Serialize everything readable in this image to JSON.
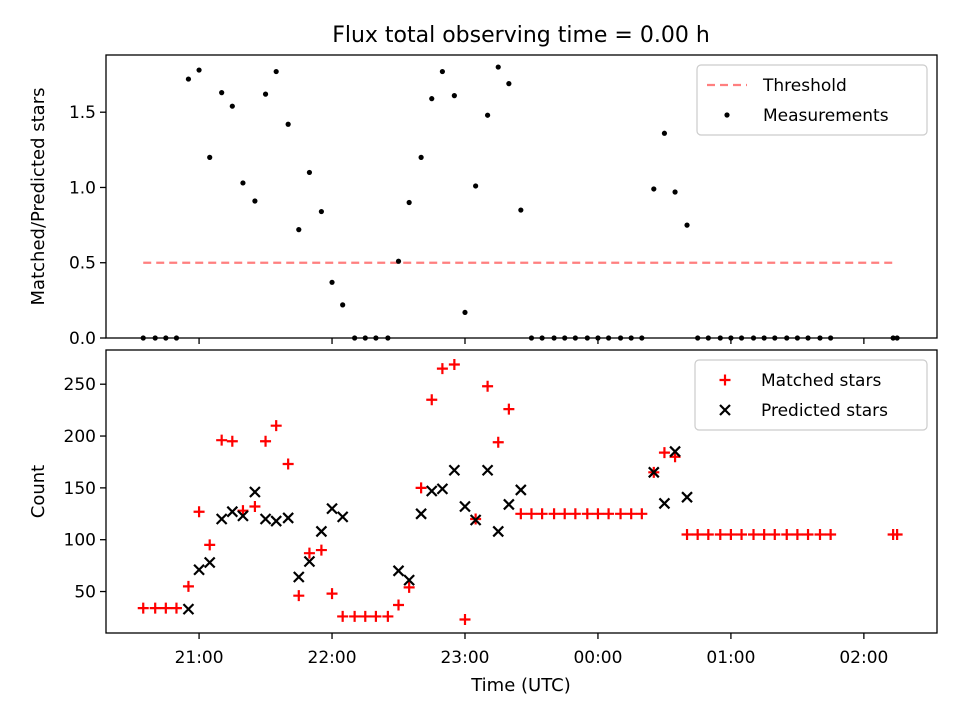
{
  "figure": {
    "title": "Flux total observing time = 0.00 h",
    "xlabel": "Time (UTC)",
    "xticks": [
      {
        "t": 21,
        "label": "21:00"
      },
      {
        "t": 22,
        "label": "22:00"
      },
      {
        "t": 23,
        "label": "23:00"
      },
      {
        "t": 24,
        "label": "00:00"
      },
      {
        "t": 25,
        "label": "01:00"
      },
      {
        "t": 26,
        "label": "02:00"
      }
    ],
    "xlim": [
      20.3,
      26.55
    ]
  },
  "chart_data": [
    {
      "type": "scatter",
      "ylabel": "Matched/Predicted stars",
      "ylim": [
        0,
        1.88
      ],
      "yticks": [
        {
          "v": 0.0,
          "label": "0.0"
        },
        {
          "v": 0.5,
          "label": "0.5"
        },
        {
          "v": 1.0,
          "label": "1.0"
        },
        {
          "v": 1.5,
          "label": "1.5"
        }
      ],
      "legend_position": "upper right",
      "threshold": {
        "name": "Threshold",
        "value": 0.5,
        "x_range": [
          20.58,
          26.25
        ],
        "color": "#ff7f7f"
      },
      "series": [
        {
          "name": "Measurements",
          "color": "#000000",
          "marker": "dot",
          "points": [
            [
              20.58,
              0.0
            ],
            [
              20.67,
              0.0
            ],
            [
              20.75,
              0.0
            ],
            [
              20.83,
              0.0
            ],
            [
              20.92,
              1.72
            ],
            [
              21.0,
              1.78
            ],
            [
              21.08,
              1.2
            ],
            [
              21.17,
              1.63
            ],
            [
              21.25,
              1.54
            ],
            [
              21.33,
              1.03
            ],
            [
              21.42,
              0.91
            ],
            [
              21.5,
              1.62
            ],
            [
              21.58,
              1.77
            ],
            [
              21.67,
              1.42
            ],
            [
              21.75,
              0.72
            ],
            [
              21.83,
              1.1
            ],
            [
              21.92,
              0.84
            ],
            [
              22.0,
              0.37
            ],
            [
              22.08,
              0.22
            ],
            [
              22.17,
              0.0
            ],
            [
              22.25,
              0.0
            ],
            [
              22.33,
              0.0
            ],
            [
              22.42,
              0.0
            ],
            [
              22.5,
              0.51
            ],
            [
              22.58,
              0.9
            ],
            [
              22.67,
              1.2
            ],
            [
              22.75,
              1.59
            ],
            [
              22.83,
              1.77
            ],
            [
              22.92,
              1.61
            ],
            [
              23.0,
              0.17
            ],
            [
              23.08,
              1.01
            ],
            [
              23.17,
              1.48
            ],
            [
              23.25,
              1.8
            ],
            [
              23.33,
              1.69
            ],
            [
              23.42,
              0.85
            ],
            [
              23.5,
              0.0
            ],
            [
              23.58,
              0.0
            ],
            [
              23.67,
              0.0
            ],
            [
              23.75,
              0.0
            ],
            [
              23.83,
              0.0
            ],
            [
              23.92,
              0.0
            ],
            [
              24.0,
              0.0
            ],
            [
              24.08,
              0.0
            ],
            [
              24.17,
              0.0
            ],
            [
              24.25,
              0.0
            ],
            [
              24.33,
              0.0
            ],
            [
              24.42,
              0.99
            ],
            [
              24.5,
              1.36
            ],
            [
              24.58,
              0.97
            ],
            [
              24.67,
              0.75
            ],
            [
              24.75,
              0.0
            ],
            [
              24.83,
              0.0
            ],
            [
              24.92,
              0.0
            ],
            [
              25.0,
              0.0
            ],
            [
              25.08,
              0.0
            ],
            [
              25.17,
              0.0
            ],
            [
              25.25,
              0.0
            ],
            [
              25.33,
              0.0
            ],
            [
              25.42,
              0.0
            ],
            [
              25.5,
              0.0
            ],
            [
              25.58,
              0.0
            ],
            [
              25.67,
              0.0
            ],
            [
              25.75,
              0.0
            ],
            [
              26.22,
              0.0
            ],
            [
              26.25,
              0.0
            ]
          ]
        }
      ]
    },
    {
      "type": "scatter",
      "ylabel": "Count",
      "ylim": [
        10,
        283
      ],
      "yticks": [
        {
          "v": 50,
          "label": "50"
        },
        {
          "v": 100,
          "label": "100"
        },
        {
          "v": 150,
          "label": "150"
        },
        {
          "v": 200,
          "label": "200"
        },
        {
          "v": 250,
          "label": "250"
        }
      ],
      "legend_position": "upper right",
      "series": [
        {
          "name": "Matched stars",
          "color": "#ff0000",
          "marker": "plus",
          "points": [
            [
              20.58,
              34
            ],
            [
              20.67,
              34
            ],
            [
              20.75,
              34
            ],
            [
              20.83,
              34
            ],
            [
              20.92,
              55
            ],
            [
              21.0,
              127
            ],
            [
              21.08,
              95
            ],
            [
              21.17,
              196
            ],
            [
              21.25,
              195
            ],
            [
              21.33,
              128
            ],
            [
              21.42,
              132
            ],
            [
              21.5,
              195
            ],
            [
              21.58,
              210
            ],
            [
              21.67,
              173
            ],
            [
              21.75,
              46
            ],
            [
              21.83,
              87
            ],
            [
              21.92,
              90
            ],
            [
              22.0,
              48
            ],
            [
              22.08,
              26
            ],
            [
              22.17,
              26
            ],
            [
              22.25,
              26
            ],
            [
              22.33,
              26
            ],
            [
              22.42,
              26
            ],
            [
              22.5,
              37
            ],
            [
              22.58,
              54
            ],
            [
              22.67,
              150
            ],
            [
              22.75,
              235
            ],
            [
              22.83,
              265
            ],
            [
              22.92,
              269
            ],
            [
              23.0,
              23
            ],
            [
              23.08,
              120
            ],
            [
              23.17,
              248
            ],
            [
              23.25,
              194
            ],
            [
              23.33,
              226
            ],
            [
              23.42,
              125
            ],
            [
              23.5,
              125
            ],
            [
              23.58,
              125
            ],
            [
              23.67,
              125
            ],
            [
              23.75,
              125
            ],
            [
              23.83,
              125
            ],
            [
              23.92,
              125
            ],
            [
              24.0,
              125
            ],
            [
              24.08,
              125
            ],
            [
              24.17,
              125
            ],
            [
              24.25,
              125
            ],
            [
              24.33,
              125
            ],
            [
              24.42,
              165
            ],
            [
              24.5,
              184
            ],
            [
              24.58,
              180
            ],
            [
              24.67,
              105
            ],
            [
              24.75,
              105
            ],
            [
              24.83,
              105
            ],
            [
              24.92,
              105
            ],
            [
              25.0,
              105
            ],
            [
              25.08,
              105
            ],
            [
              25.17,
              105
            ],
            [
              25.25,
              105
            ],
            [
              25.33,
              105
            ],
            [
              25.42,
              105
            ],
            [
              25.5,
              105
            ],
            [
              25.58,
              105
            ],
            [
              25.67,
              105
            ],
            [
              25.75,
              105
            ],
            [
              26.22,
              105
            ],
            [
              26.25,
              105
            ]
          ]
        },
        {
          "name": "Predicted stars",
          "color": "#000000",
          "marker": "x",
          "points": [
            [
              20.92,
              33
            ],
            [
              21.0,
              71
            ],
            [
              21.08,
              78
            ],
            [
              21.17,
              120
            ],
            [
              21.25,
              127
            ],
            [
              21.33,
              123
            ],
            [
              21.42,
              146
            ],
            [
              21.5,
              120
            ],
            [
              21.58,
              118
            ],
            [
              21.67,
              121
            ],
            [
              21.75,
              64
            ],
            [
              21.83,
              79
            ],
            [
              21.92,
              108
            ],
            [
              22.0,
              130
            ],
            [
              22.08,
              122
            ],
            [
              22.5,
              70
            ],
            [
              22.58,
              61
            ],
            [
              22.67,
              125
            ],
            [
              22.75,
              147
            ],
            [
              22.83,
              149
            ],
            [
              22.92,
              167
            ],
            [
              23.0,
              132
            ],
            [
              23.08,
              119
            ],
            [
              23.17,
              167
            ],
            [
              23.25,
              108
            ],
            [
              23.33,
              134
            ],
            [
              23.42,
              148
            ],
            [
              24.42,
              165
            ],
            [
              24.5,
              135
            ],
            [
              24.58,
              185
            ],
            [
              24.67,
              141
            ]
          ]
        }
      ]
    }
  ]
}
